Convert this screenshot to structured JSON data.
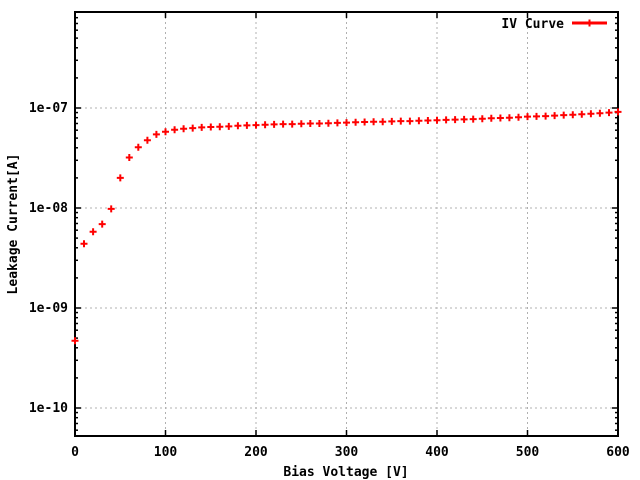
{
  "window": {
    "background": "#ffffff"
  },
  "colors": {
    "background": "#ffffff",
    "series_red": "#ff0000",
    "grid": "#b0b0b0",
    "axis": "#000000",
    "text": "#000000"
  },
  "chart_data": {
    "type": "scatter",
    "title": "",
    "xlabel": "Bias Voltage [V]",
    "ylabel": "Leakage Current[A]",
    "x_scale": "linear",
    "y_scale": "log",
    "x_range": [
      0,
      600
    ],
    "y_range": [
      5e-11,
      9e-07
    ],
    "grid": true,
    "legend_position": "top-right",
    "x_ticks": [
      0,
      100,
      200,
      300,
      400,
      500,
      600
    ],
    "x_tick_labels": [
      "0",
      "100",
      "200",
      "300",
      "400",
      "500",
      "600"
    ],
    "y_ticks": [
      1e-10,
      1e-09,
      1e-08,
      1e-07
    ],
    "y_tick_labels": [
      "1e-10",
      "1e-09",
      "1e-08",
      "1e-07"
    ],
    "series": [
      {
        "name": "IV Curve",
        "color": "#ff0000",
        "marker": "plus",
        "x": [
          0,
          10,
          20,
          30,
          40,
          50,
          60,
          70,
          80,
          90,
          100,
          110,
          120,
          130,
          140,
          150,
          160,
          170,
          180,
          190,
          200,
          210,
          220,
          230,
          240,
          250,
          260,
          270,
          280,
          290,
          300,
          310,
          320,
          330,
          340,
          350,
          360,
          370,
          380,
          390,
          400,
          410,
          420,
          430,
          440,
          450,
          460,
          470,
          480,
          490,
          500,
          510,
          520,
          530,
          540,
          550,
          560,
          570,
          580,
          590,
          600
        ],
        "y": [
          4.7e-10,
          4.4e-09,
          5.8e-09,
          6.9e-09,
          9.8e-09,
          2e-08,
          3.2e-08,
          4.05e-08,
          4.75e-08,
          5.45e-08,
          5.8e-08,
          6.05e-08,
          6.2e-08,
          6.3e-08,
          6.4e-08,
          6.45e-08,
          6.5e-08,
          6.55e-08,
          6.65e-08,
          6.7e-08,
          6.75e-08,
          6.8e-08,
          6.85e-08,
          6.9e-08,
          6.9e-08,
          6.95e-08,
          7e-08,
          7e-08,
          7.05e-08,
          7.1e-08,
          7.15e-08,
          7.2e-08,
          7.25e-08,
          7.3e-08,
          7.3e-08,
          7.35e-08,
          7.4e-08,
          7.4e-08,
          7.45e-08,
          7.5e-08,
          7.55e-08,
          7.6e-08,
          7.65e-08,
          7.7e-08,
          7.75e-08,
          7.8e-08,
          7.9e-08,
          7.95e-08,
          8e-08,
          8.1e-08,
          8.2e-08,
          8.25e-08,
          8.3e-08,
          8.4e-08,
          8.5e-08,
          8.55e-08,
          8.65e-08,
          8.75e-08,
          8.85e-08,
          9e-08,
          9.15e-08
        ]
      }
    ]
  }
}
